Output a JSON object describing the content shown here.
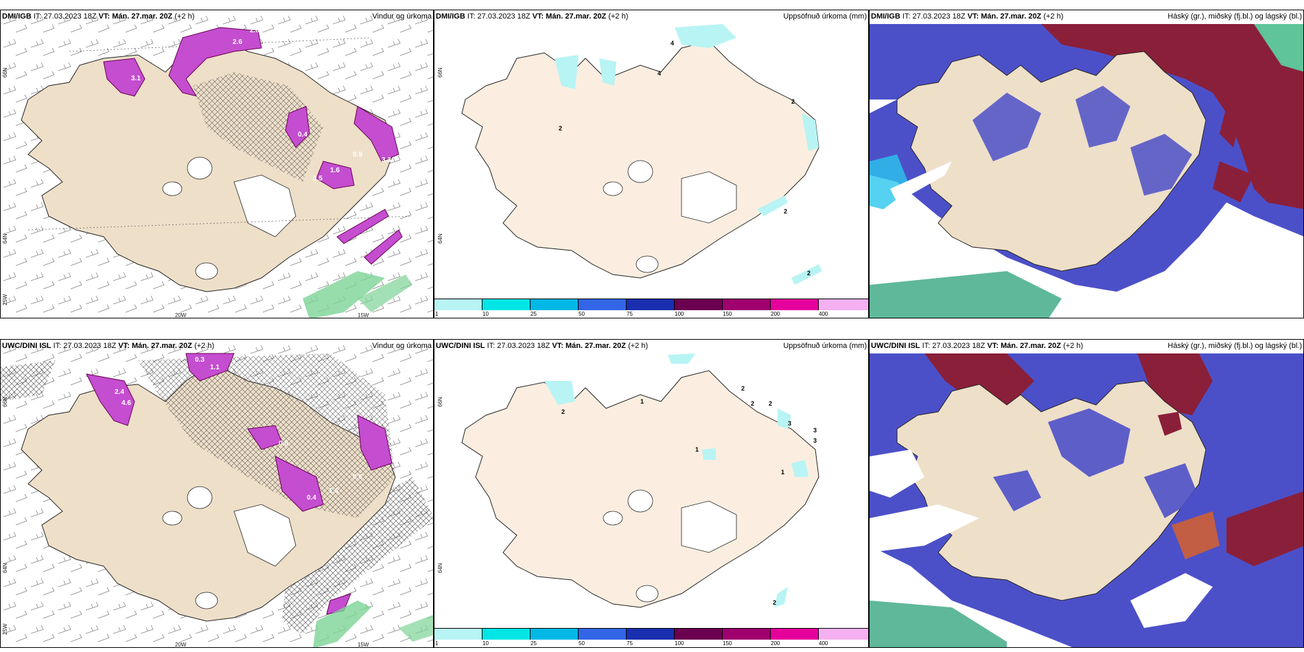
{
  "rows": [
    {
      "model": "DMI/IGB",
      "it_label": "IT:",
      "it_value": "27.03.2023 18Z",
      "vt_label": "VT:",
      "vt_value": "Mán. 27.mar. 20Z",
      "lead": "(+2 h)",
      "panels": [
        {
          "title": "Vindur og úrkoma",
          "lat_labels": [
            "66N",
            "64N",
            "25W"
          ],
          "lon_labels": [
            "20W",
            "15W"
          ],
          "values": [
            "2.8",
            "2.6",
            "3.1",
            "3.3",
            "0.4",
            "0.5",
            "1.6",
            "0.9"
          ]
        },
        {
          "title": "Uppsöfnuð úrkoma (mm)",
          "lat_labels": [
            "66N",
            "64N"
          ],
          "values": [
            "4",
            "4",
            "2",
            "2",
            "2",
            "2"
          ]
        },
        {
          "title": "Háský (gr.), miðský (fj.bl.) og lágský (bl.)"
        }
      ]
    },
    {
      "model": "UWC/DINI ISL",
      "it_label": "IT:",
      "it_value": "27.03.2023 18Z",
      "vt_label": "VT:",
      "vt_value": "Mán. 27.mar. 20Z",
      "lead": "(+2 h)",
      "panels": [
        {
          "title": "Vindur og úrkoma",
          "lat_labels": [
            "66N",
            "64N",
            "25W"
          ],
          "lon_labels": [
            "20W",
            "15W"
          ],
          "values": [
            "0.3",
            "1.1",
            "2.4",
            "4.6",
            "0.5",
            "0.4",
            "1.6",
            "0.6"
          ]
        },
        {
          "title": "Uppsöfnuð úrkoma (mm)",
          "lat_labels": [
            "66N",
            "64N"
          ],
          "values": [
            "2",
            "1",
            "2",
            "2",
            "2",
            "3",
            "3",
            "3",
            "1",
            "1",
            "2"
          ]
        },
        {
          "title": "Háský (gr.), miðský (fj.bl.) og lágský (bl.)"
        }
      ]
    }
  ],
  "colorbar": {
    "labels": [
      "1",
      "10",
      "25",
      "50",
      "75",
      "100",
      "150",
      "200",
      "400"
    ],
    "colors": [
      "#b8f4f4",
      "#00e6e6",
      "#00b8e6",
      "#3366e6",
      "#1a2fb0",
      "#6b0050",
      "#a0006e",
      "#e6009c",
      "#f4b0f0"
    ]
  },
  "map_colors": {
    "land": "#eedfc9",
    "land_light": "#fbeee0",
    "sea": "#ffffff",
    "precip": "#c44dd0",
    "low_cloud": "#4c50c8",
    "mid_cloud": "#2ac6ee",
    "high_cloud": "#8a1f3a",
    "green": "#7dd396"
  }
}
